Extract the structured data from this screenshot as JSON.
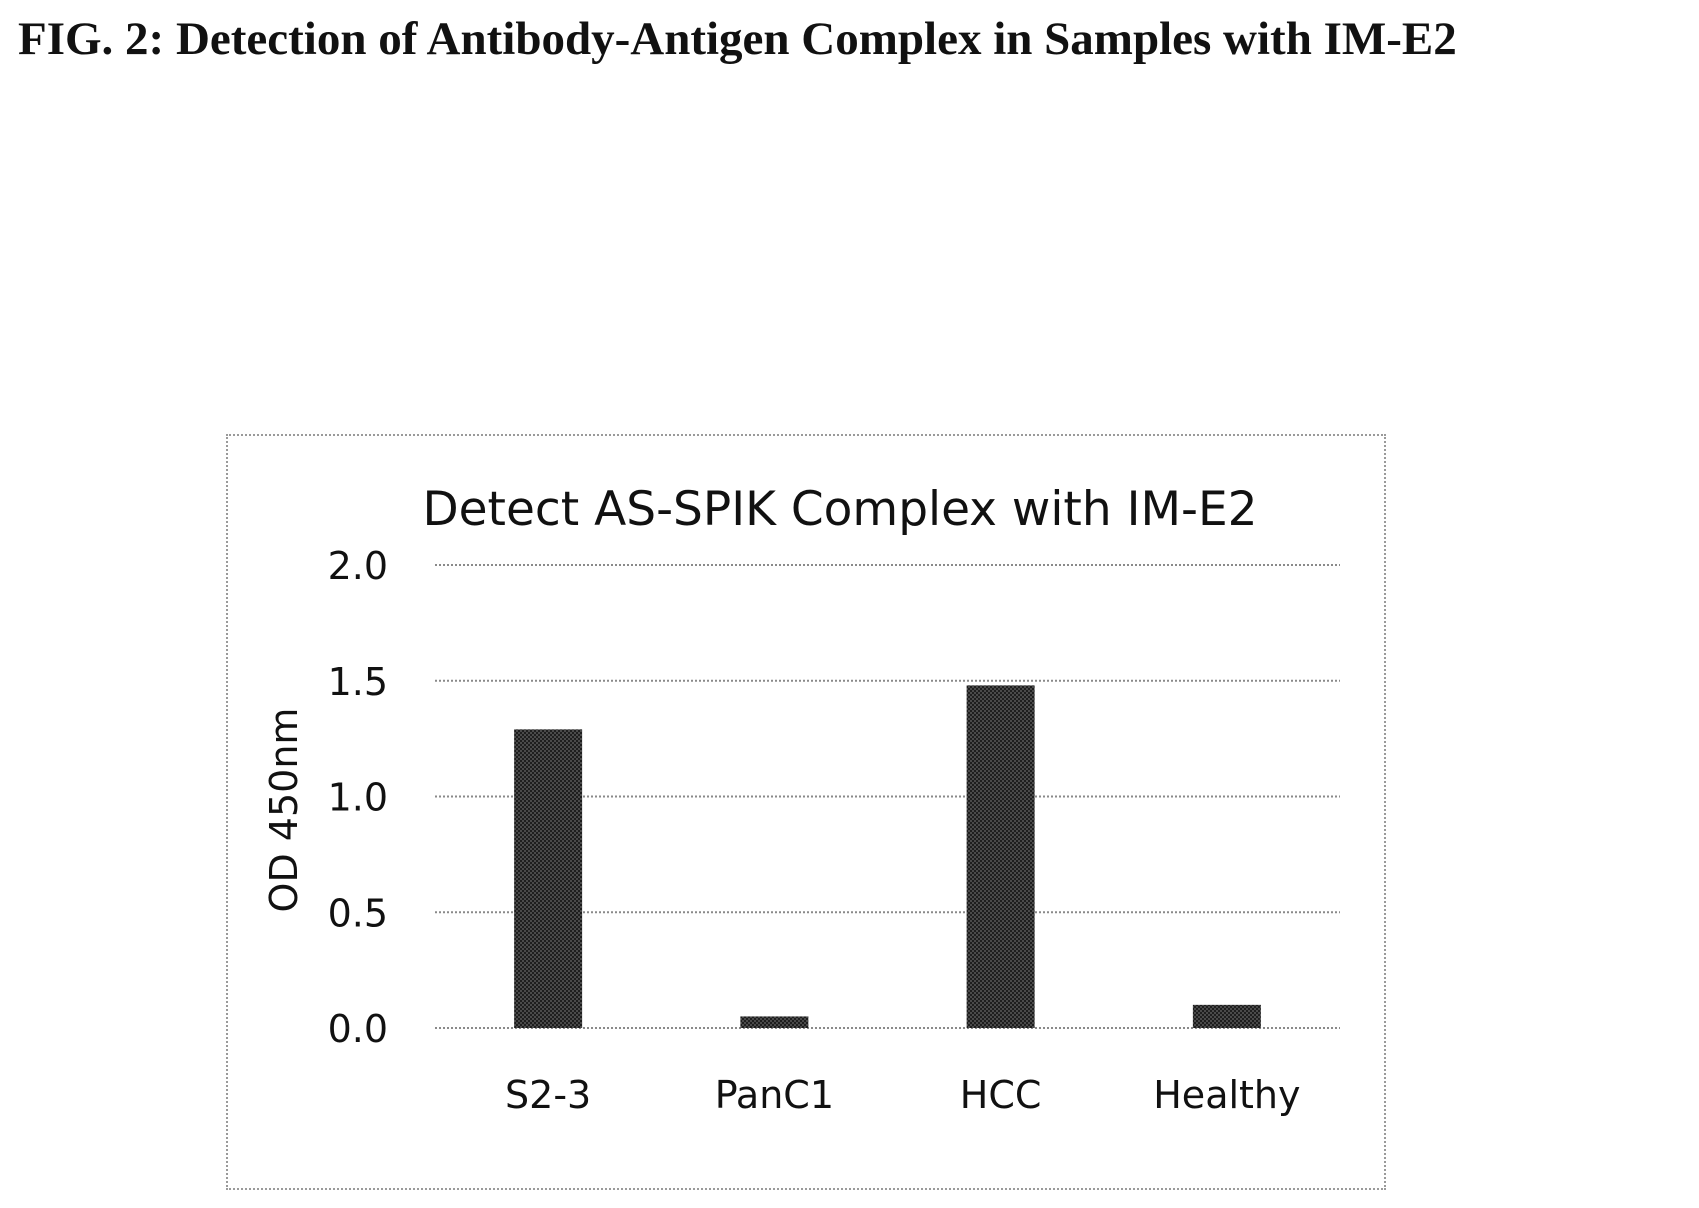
{
  "figure": {
    "title": "FIG. 2: Detection of Antibody-Antigen Complex in Samples with IM-E2"
  },
  "chart_data": {
    "type": "bar",
    "title": "Detect AS-SPIK Complex with IM-E2",
    "xlabel": "",
    "ylabel": "OD 450nm",
    "categories": [
      "S2-3",
      "PanC1",
      "HCC",
      "Healthy"
    ],
    "series": [
      {
        "values": [
          1.29,
          0.05,
          1.48,
          0.1
        ]
      }
    ],
    "ylim": [
      0,
      2.0
    ],
    "yticks": [
      "0.0",
      "0.5",
      "1.0",
      "1.5",
      "2.0"
    ],
    "grid": true,
    "legend": "none",
    "colors": {
      "bar": "#3a3a3a",
      "grid": "#8a8a8a",
      "frame": "#9a9a9a"
    }
  }
}
